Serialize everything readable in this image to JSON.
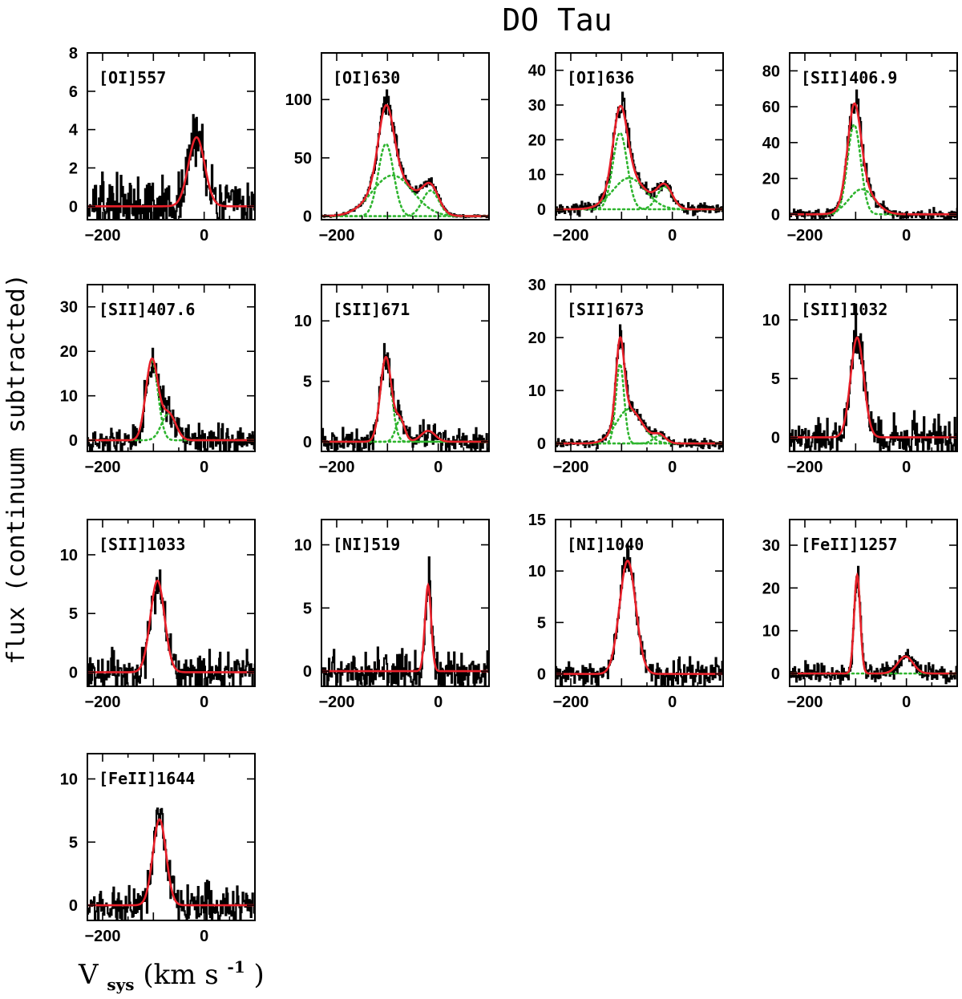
{
  "figure": {
    "title": "DO Tau",
    "ylabel": "flux (continuum subtracted)",
    "xlabel_main": "V",
    "xlabel_sub": "sys",
    "xlabel_units_open": " (km s",
    "xlabel_units_exp": "-1",
    "xlabel_units_close": ")",
    "colors": {
      "data": "#000000",
      "fit": "#e8202a",
      "components": "#2fb52f"
    }
  },
  "chart_data": [
    {
      "type": "line",
      "title": "[OI]557",
      "ylim": [
        -0.7,
        8.0
      ],
      "yticks": [
        0,
        2,
        4,
        6,
        8
      ],
      "xlim": [
        -230,
        100
      ],
      "xticks": [
        -200,
        0
      ],
      "noise": 1.0,
      "series": [
        {
          "name": "fit",
          "components": [
            {
              "amp": 3.6,
              "center": -15,
              "sigma": 16
            }
          ]
        }
      ]
    },
    {
      "type": "line",
      "title": "[OI]630",
      "ylim": [
        -3,
        140
      ],
      "yticks": [
        0,
        50,
        100
      ],
      "xlim": [
        -230,
        100
      ],
      "xticks": [
        -200,
        0
      ],
      "noise": 0.8,
      "series": [
        {
          "name": "fit",
          "components": [
            {
              "amp": 62,
              "center": -103,
              "sigma": 15
            },
            {
              "amp": 35,
              "center": -90,
              "sigma": 40
            },
            {
              "amp": 22,
              "center": -15,
              "sigma": 16
            }
          ]
        }
      ]
    },
    {
      "type": "line",
      "title": "[OI]636",
      "ylim": [
        -3,
        45
      ],
      "yticks": [
        0,
        10,
        20,
        30,
        40
      ],
      "xlim": [
        -230,
        100
      ],
      "xticks": [
        -200,
        0
      ],
      "noise": 1.2,
      "series": [
        {
          "name": "fit",
          "components": [
            {
              "amp": 22,
              "center": -103,
              "sigma": 14
            },
            {
              "amp": 9,
              "center": -85,
              "sigma": 32
            },
            {
              "amp": 6.5,
              "center": -15,
              "sigma": 15
            }
          ]
        }
      ]
    },
    {
      "type": "line",
      "title": "[SII]406.9",
      "ylim": [
        -3,
        90
      ],
      "yticks": [
        0,
        20,
        40,
        60,
        80
      ],
      "xlim": [
        -230,
        100
      ],
      "xticks": [
        -200,
        0
      ],
      "noise": 2.0,
      "series": [
        {
          "name": "fit",
          "components": [
            {
              "amp": 50,
              "center": -103,
              "sigma": 13
            },
            {
              "amp": 14,
              "center": -88,
              "sigma": 25
            }
          ]
        }
      ]
    },
    {
      "type": "line",
      "title": "[SII]407.6",
      "ylim": [
        -2.5,
        35
      ],
      "yticks": [
        0,
        10,
        20,
        30
      ],
      "xlim": [
        -230,
        100
      ],
      "xticks": [
        -200,
        0
      ],
      "noise": 2.5,
      "series": [
        {
          "name": "fit",
          "components": [
            {
              "amp": 18,
              "center": -103,
              "sigma": 12
            },
            {
              "amp": 6,
              "center": -70,
              "sigma": 14
            }
          ]
        }
      ]
    },
    {
      "type": "line",
      "title": "[SII]671",
      "ylim": [
        -0.8,
        13
      ],
      "yticks": [
        0,
        5,
        10
      ],
      "xlim": [
        -230,
        100
      ],
      "xticks": [
        -200,
        0
      ],
      "noise": 0.7,
      "series": [
        {
          "name": "fit",
          "components": [
            {
              "amp": 7.0,
              "center": -103,
              "sigma": 11
            },
            {
              "amp": 1.8,
              "center": -75,
              "sigma": 9
            },
            {
              "amp": 0.9,
              "center": -20,
              "sigma": 14
            }
          ]
        }
      ]
    },
    {
      "type": "line",
      "title": "[SII]673",
      "ylim": [
        -1.5,
        30
      ],
      "yticks": [
        0,
        10,
        20,
        30
      ],
      "xlim": [
        -230,
        100
      ],
      "xticks": [
        -200,
        0
      ],
      "noise": 0.6,
      "series": [
        {
          "name": "fit",
          "components": [
            {
              "amp": 15,
              "center": -103,
              "sigma": 8
            },
            {
              "amp": 6.5,
              "center": -85,
              "sigma": 25
            },
            {
              "amp": 1.5,
              "center": -25,
              "sigma": 12
            }
          ]
        }
      ]
    },
    {
      "type": "line",
      "title": "[SII]1032",
      "ylim": [
        -1.2,
        13
      ],
      "yticks": [
        0,
        5,
        10
      ],
      "xlim": [
        -230,
        100
      ],
      "xticks": [
        -200,
        0
      ],
      "noise": 1.3,
      "series": [
        {
          "name": "fit",
          "components": [
            {
              "amp": 8.5,
              "center": -97,
              "sigma": 13
            }
          ]
        }
      ]
    },
    {
      "type": "line",
      "title": "[SII]1033",
      "ylim": [
        -1.2,
        13
      ],
      "yticks": [
        0,
        5,
        10
      ],
      "xlim": [
        -230,
        100
      ],
      "xticks": [
        -200,
        0
      ],
      "noise": 1.3,
      "series": [
        {
          "name": "fit",
          "components": [
            {
              "amp": 7.8,
              "center": -92,
              "sigma": 14
            }
          ]
        }
      ]
    },
    {
      "type": "line",
      "title": "[NI]519",
      "ylim": [
        -1.2,
        12
      ],
      "yticks": [
        0,
        5,
        10
      ],
      "xlim": [
        -230,
        100
      ],
      "xticks": [
        -200,
        0
      ],
      "noise": 1.0,
      "series": [
        {
          "name": "fit",
          "components": [
            {
              "amp": 6.8,
              "center": -20,
              "sigma": 6
            }
          ]
        }
      ]
    },
    {
      "type": "line",
      "title": "[NI]1040",
      "ylim": [
        -1.2,
        15
      ],
      "yticks": [
        0,
        5,
        10,
        15
      ],
      "xlim": [
        -230,
        100
      ],
      "xticks": [
        -200,
        0
      ],
      "noise": 1.0,
      "series": [
        {
          "name": "fit",
          "components": [
            {
              "amp": 11,
              "center": -88,
              "sigma": 16
            }
          ]
        }
      ]
    },
    {
      "type": "line",
      "title": "[FeII]1257",
      "ylim": [
        -3,
        36
      ],
      "yticks": [
        0,
        10,
        20,
        30
      ],
      "xlim": [
        -230,
        100
      ],
      "xticks": [
        -200,
        0
      ],
      "noise": 1.5,
      "series": [
        {
          "name": "fit",
          "components": [
            {
              "amp": 23,
              "center": -97,
              "sigma": 6
            },
            {
              "amp": 4,
              "center": -2,
              "sigma": 15
            }
          ]
        }
      ]
    },
    {
      "type": "line",
      "title": "[FeII]1644",
      "ylim": [
        -1.2,
        12
      ],
      "yticks": [
        0,
        5,
        10
      ],
      "xlim": [
        -230,
        100
      ],
      "xticks": [
        -200,
        0
      ],
      "noise": 1.2,
      "series": [
        {
          "name": "fit",
          "components": [
            {
              "amp": 6.8,
              "center": -88,
              "sigma": 13
            }
          ]
        }
      ]
    }
  ]
}
